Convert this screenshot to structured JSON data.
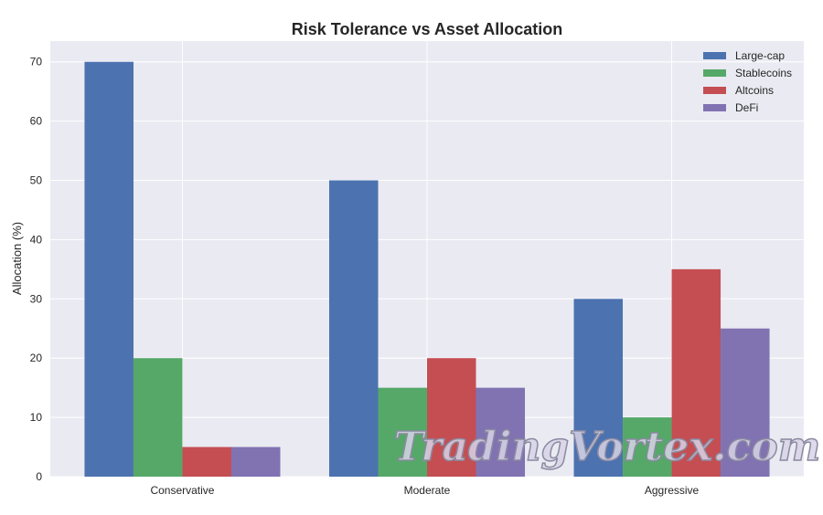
{
  "chart_data": {
    "type": "bar",
    "title": "Risk Tolerance vs Asset Allocation",
    "xlabel": "",
    "ylabel": "Allocation (%)",
    "categories": [
      "Conservative",
      "Moderate",
      "Aggressive"
    ],
    "series": [
      {
        "name": "Large-cap",
        "values": [
          70,
          50,
          30
        ],
        "color": "#4C72B0"
      },
      {
        "name": "Stablecoins",
        "values": [
          20,
          15,
          10
        ],
        "color": "#55A868"
      },
      {
        "name": "Altcoins",
        "values": [
          5,
          20,
          35
        ],
        "color": "#C44E52"
      },
      {
        "name": "DeFi",
        "values": [
          5,
          15,
          25
        ],
        "color": "#8172B2"
      }
    ],
    "ylim": [
      0,
      73.5
    ],
    "yticks": [
      0,
      10,
      20,
      30,
      40,
      50,
      60,
      70
    ],
    "grid": true,
    "legend": "top-right",
    "background": "#EAEAF2"
  },
  "watermark": "TradingVortex.com"
}
